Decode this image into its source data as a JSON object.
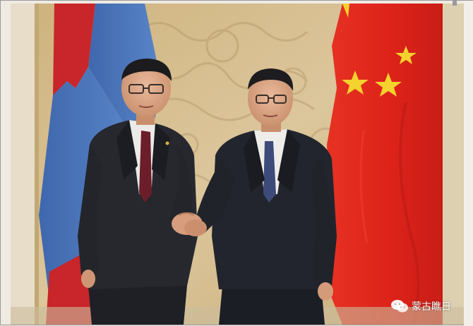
{
  "watermark": {
    "text": "蒙古瞧日",
    "icon": "wechat-icon"
  },
  "colors": {
    "mongolia_red": "#c9262a",
    "mongolia_blue": "#4a75bd",
    "china_red": "#e2241b",
    "star_yellow": "#f3d22d",
    "wall_gold": "#d8c193",
    "suit_dark": "#23252c"
  }
}
